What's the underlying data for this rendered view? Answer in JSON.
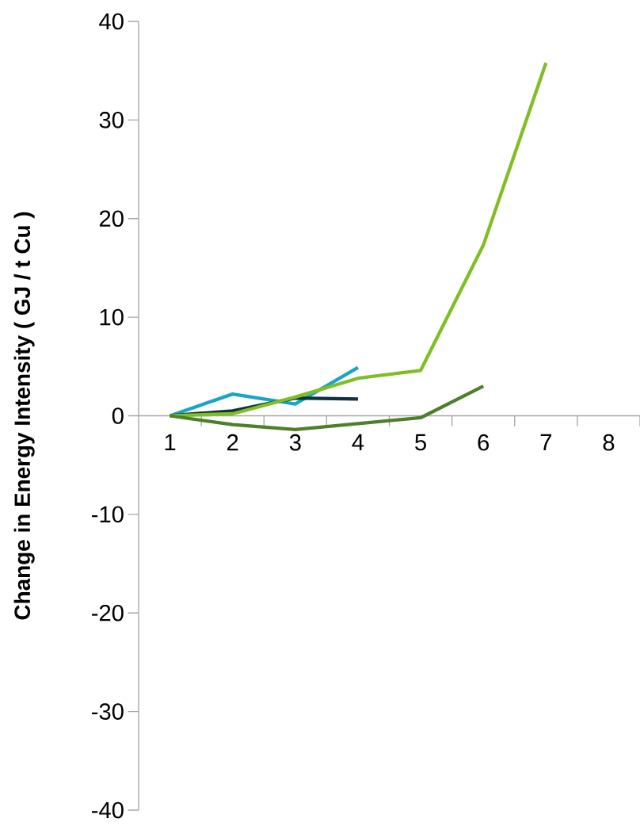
{
  "chart_data": {
    "type": "line",
    "ylabel": "Change in Energy Intensity ( GJ / t Cu )",
    "categories": [
      "1",
      "2",
      "3",
      "4",
      "5",
      "6",
      "7",
      "8"
    ],
    "series": [
      {
        "color": "#17a6c9",
        "values": [
          0,
          2.2,
          1.2,
          4.9,
          null,
          null,
          null,
          null
        ]
      },
      {
        "color": "#10323c",
        "values": [
          0,
          0.5,
          1.8,
          1.7,
          null,
          null,
          null,
          null
        ]
      },
      {
        "color": "#7fbf26",
        "values": [
          0,
          0.2,
          1.9,
          3.8,
          4.6,
          17.3,
          35.8,
          null
        ]
      },
      {
        "color": "#4e7f2a",
        "values": [
          0,
          -0.9,
          -1.4,
          -0.8,
          -0.2,
          3.0,
          null,
          null
        ]
      }
    ],
    "ylim": [
      -40,
      40
    ],
    "yticks": [
      -40,
      -30,
      -20,
      -10,
      0,
      10,
      20,
      30,
      40
    ],
    "grid": false,
    "marker": "none",
    "line_style": "solid"
  }
}
